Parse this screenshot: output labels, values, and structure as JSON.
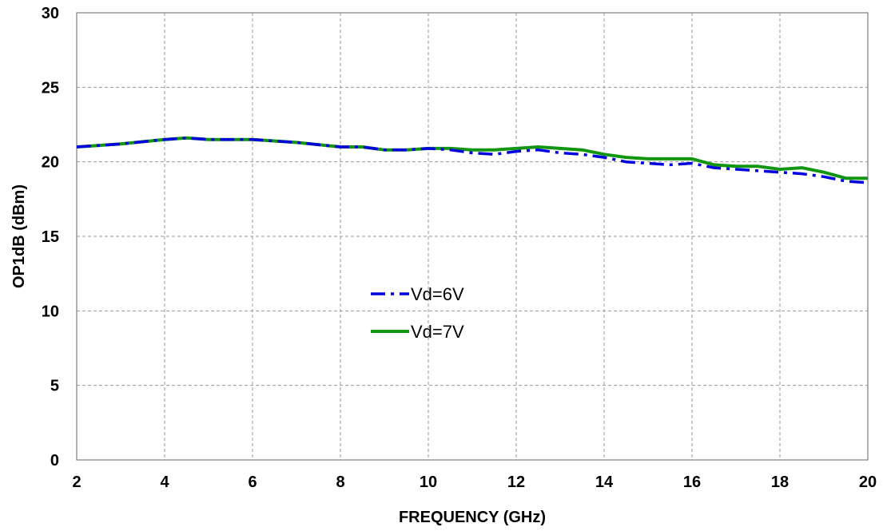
{
  "chart_data": {
    "type": "line",
    "xlabel": "FREQUENCY (GHz)",
    "ylabel": "OP1dB (dBm)",
    "xlim": [
      2,
      20
    ],
    "ylim": [
      0,
      30
    ],
    "xticks": [
      "2",
      "4",
      "6",
      "8",
      "10",
      "12",
      "14",
      "16",
      "18",
      "20"
    ],
    "yticks": [
      "0",
      "5",
      "10",
      "15",
      "20",
      "25",
      "30"
    ],
    "grid": true,
    "legend_position": "center",
    "series": [
      {
        "name": "Vd=6V",
        "color": "#0000e0",
        "style": "dash-dot",
        "x": [
          2,
          3,
          4,
          4.5,
          5,
          6,
          7,
          8,
          8.5,
          9,
          9.5,
          10,
          10.5,
          11,
          11.5,
          12,
          12.5,
          13,
          13.5,
          14,
          14.5,
          15,
          15.5,
          16,
          16.5,
          17,
          17.5,
          18,
          18.5,
          19,
          19.5,
          20
        ],
        "y": [
          21.0,
          21.2,
          21.5,
          21.6,
          21.5,
          21.5,
          21.3,
          21.0,
          21.0,
          20.8,
          20.8,
          20.9,
          20.8,
          20.6,
          20.5,
          20.7,
          20.8,
          20.6,
          20.5,
          20.3,
          20.0,
          19.9,
          19.8,
          19.9,
          19.6,
          19.5,
          19.4,
          19.3,
          19.2,
          19.0,
          18.7,
          18.6
        ]
      },
      {
        "name": "Vd=7V",
        "color": "#129612",
        "style": "solid",
        "x": [
          2,
          3,
          4,
          4.5,
          5,
          6,
          7,
          8,
          8.5,
          9,
          9.5,
          10,
          10.5,
          11,
          11.5,
          12,
          12.5,
          13,
          13.5,
          14,
          14.5,
          15,
          15.5,
          16,
          16.5,
          17,
          17.5,
          18,
          18.5,
          19,
          19.5,
          20
        ],
        "y": [
          21.0,
          21.2,
          21.5,
          21.6,
          21.5,
          21.5,
          21.3,
          21.0,
          21.0,
          20.8,
          20.8,
          20.9,
          20.9,
          20.8,
          20.8,
          20.9,
          21.0,
          20.9,
          20.8,
          20.5,
          20.3,
          20.2,
          20.2,
          20.2,
          19.8,
          19.7,
          19.7,
          19.5,
          19.6,
          19.3,
          18.9,
          18.9
        ]
      }
    ]
  }
}
